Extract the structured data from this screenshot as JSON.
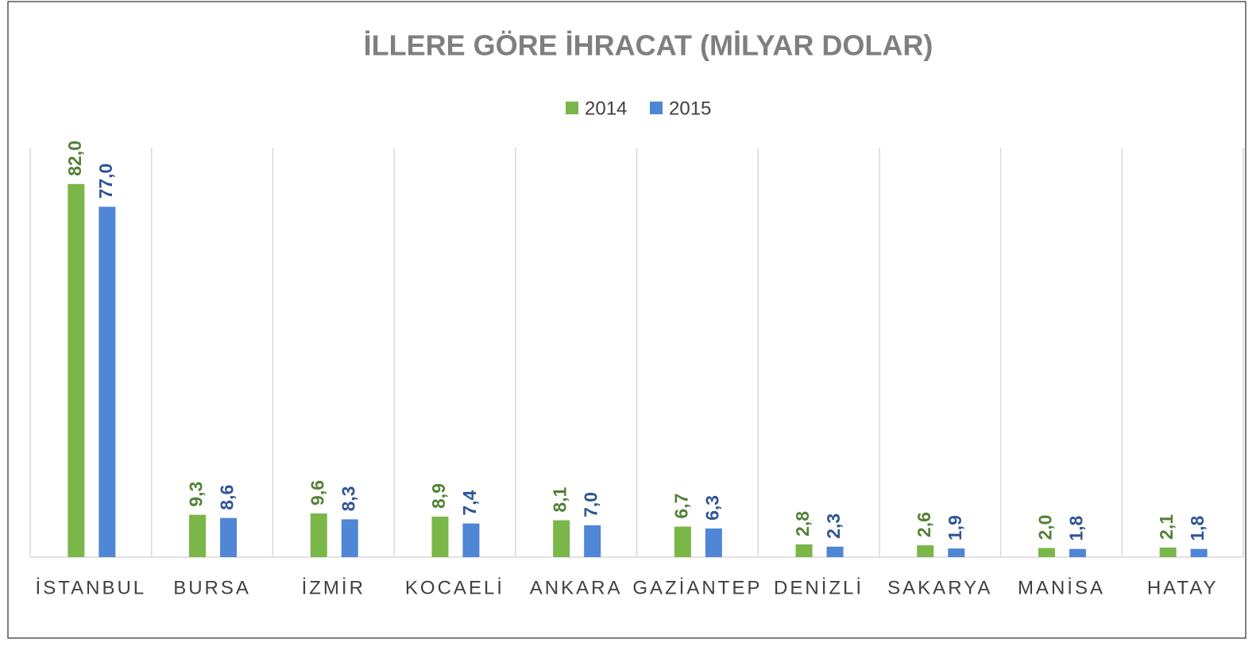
{
  "chart_data": {
    "type": "bar",
    "title": "İLLERE GÖRE İHRACAT (MİLYAR DOLAR)",
    "categories": [
      "İSTANBUL",
      "BURSA",
      "İZMİR",
      "KOCAELİ",
      "ANKARA",
      "GAZİANTEP",
      "DENİZLİ",
      "SAKARYA",
      "MANİSA",
      "HATAY"
    ],
    "series": [
      {
        "name": "2014",
        "color": "#7ab648",
        "label_color": "#538135",
        "values": [
          82.0,
          9.3,
          9.6,
          8.9,
          8.1,
          6.7,
          2.8,
          2.6,
          2.0,
          2.1
        ],
        "value_labels": [
          "82,0",
          "9,3",
          "9,6",
          "8,9",
          "8,1",
          "6,7",
          "2,8",
          "2,6",
          "2,0",
          "2,1"
        ]
      },
      {
        "name": "2015",
        "color": "#4f86d5",
        "label_color": "#2f5597",
        "values": [
          77.0,
          8.6,
          8.3,
          7.4,
          7.0,
          6.3,
          2.3,
          1.9,
          1.8,
          1.8
        ],
        "value_labels": [
          "77,0",
          "8,6",
          "8,3",
          "7,4",
          "7,0",
          "6,3",
          "2,3",
          "1,9",
          "1,8",
          "1,8"
        ]
      }
    ],
    "ylim": [
      0,
      90
    ],
    "legend": "top"
  }
}
